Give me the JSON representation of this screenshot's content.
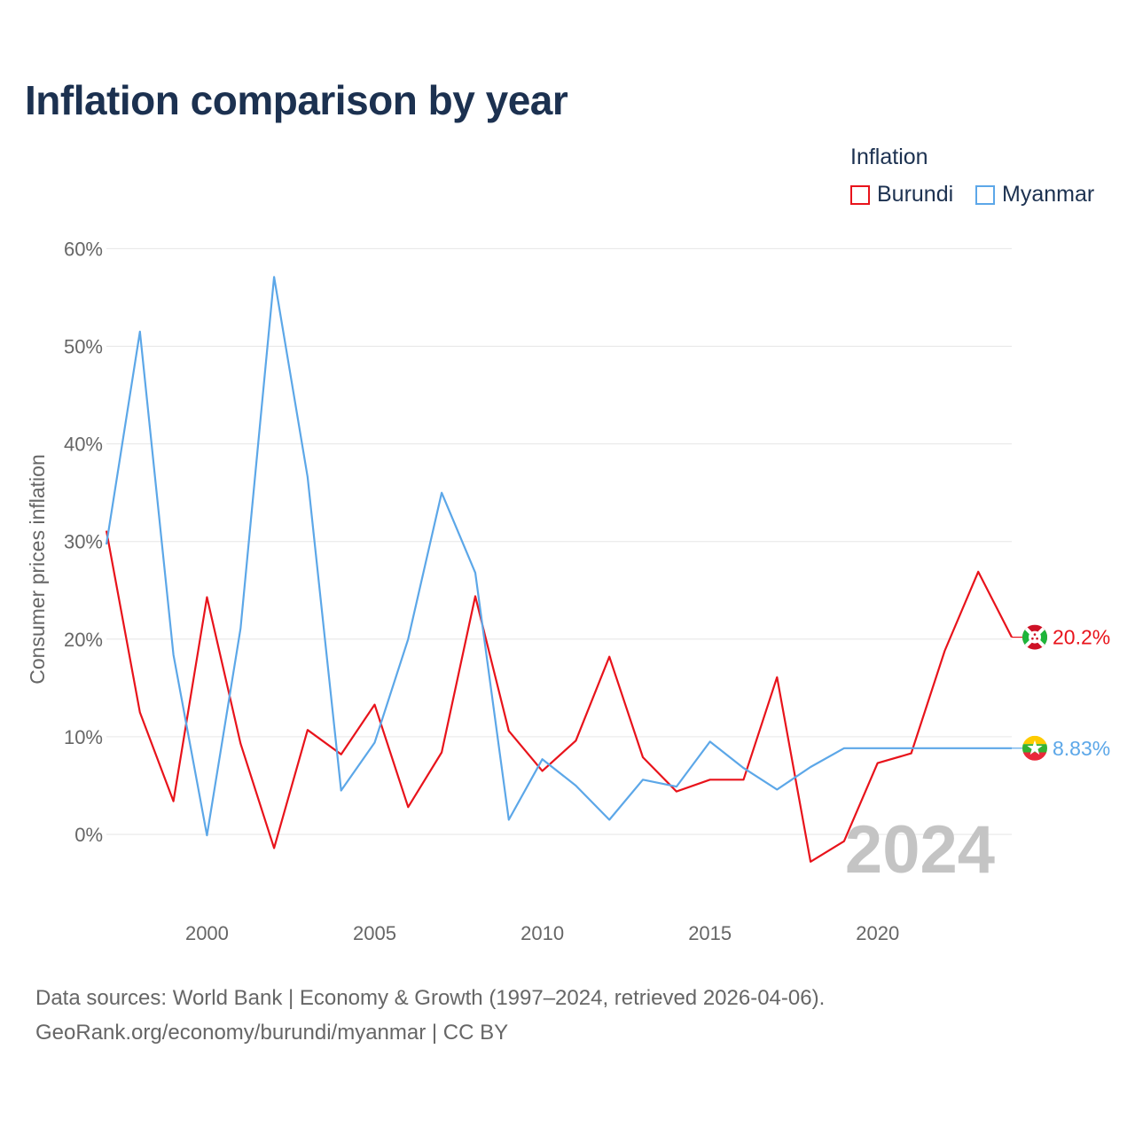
{
  "title": "Inflation comparison by year",
  "legend": {
    "title": "Inflation",
    "items": [
      {
        "name": "Burundi",
        "color": "#e8131b"
      },
      {
        "name": "Myanmar",
        "color": "#5ca7e8"
      }
    ]
  },
  "chart_data": {
    "type": "line",
    "title": "Inflation comparison by year",
    "xlabel": "",
    "ylabel": "Consumer prices inflation",
    "xlim": [
      1997,
      2024
    ],
    "ylim": [
      -5,
      60
    ],
    "x_ticks": [
      2000,
      2005,
      2010,
      2015,
      2020
    ],
    "y_ticks": [
      0,
      10,
      20,
      30,
      40,
      50,
      60
    ],
    "y_tick_labels": [
      "0%",
      "10%",
      "20%",
      "30%",
      "40%",
      "50%",
      "60%"
    ],
    "x": [
      1997,
      1998,
      1999,
      2000,
      2001,
      2002,
      2003,
      2004,
      2005,
      2006,
      2007,
      2008,
      2009,
      2010,
      2011,
      2012,
      2013,
      2014,
      2015,
      2016,
      2017,
      2018,
      2019,
      2020,
      2021,
      2022,
      2023,
      2024
    ],
    "series": [
      {
        "name": "Burundi",
        "color": "#e8131b",
        "values": [
          31.1,
          12.5,
          3.4,
          24.3,
          9.3,
          -1.4,
          10.7,
          8.2,
          13.3,
          2.8,
          8.4,
          24.4,
          10.6,
          6.5,
          9.6,
          18.2,
          7.9,
          4.4,
          5.6,
          5.6,
          16.1,
          -2.8,
          -0.7,
          7.3,
          8.3,
          18.8,
          26.9,
          20.2
        ],
        "end_label": "20.2%"
      },
      {
        "name": "Myanmar",
        "color": "#5ca7e8",
        "values": [
          29.7,
          51.5,
          18.4,
          -0.1,
          21.1,
          57.1,
          36.6,
          4.5,
          9.4,
          20.0,
          35.0,
          26.8,
          1.5,
          7.7,
          5.0,
          1.5,
          5.6,
          4.9,
          9.5,
          6.8,
          4.6,
          6.9,
          8.83,
          8.83,
          8.83,
          8.83,
          8.83,
          8.83
        ],
        "end_label": "8.83%"
      }
    ],
    "watermark_year": "2024",
    "grid": true,
    "legend_position": "top-right"
  },
  "footer": {
    "line1": "Data sources: World Bank | Economy & Growth (1997–2024, retrieved 2026-04-06).",
    "line2": "GeoRank.org/economy/burundi/myanmar | CC BY"
  }
}
